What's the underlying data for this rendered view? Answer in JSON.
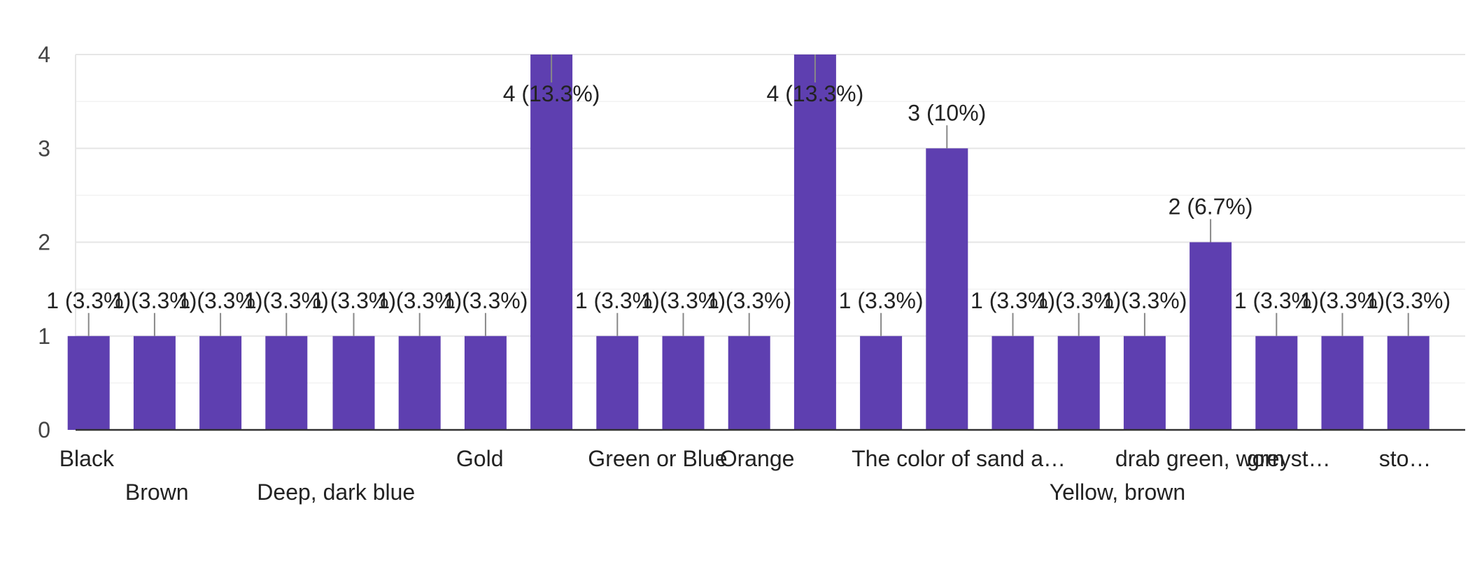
{
  "chart_data": {
    "type": "bar",
    "title": "",
    "xlabel": "",
    "ylabel": "",
    "ylim": [
      0,
      4
    ],
    "yticks": [
      0,
      1,
      2,
      3,
      4
    ],
    "grid": true,
    "bar_color": "#5e3fb0",
    "categories": [
      "Black",
      "Brown",
      "",
      "Deep, dark blue",
      "",
      "",
      "Gold",
      "",
      "Green or Blue",
      "",
      "Orange",
      "",
      "The color of sand a…",
      "",
      "",
      "Yellow, brown",
      "drab green, worn st…",
      "",
      "grey",
      "",
      "sto…"
    ],
    "values": [
      1,
      1,
      1,
      1,
      1,
      1,
      1,
      4,
      1,
      1,
      1,
      4,
      1,
      3,
      1,
      1,
      1,
      2,
      1,
      1,
      1
    ],
    "data_labels": [
      "1 (3.3%)",
      "1 (3.3%)",
      "1 (3.3%)",
      "1 (3.3%)",
      "1 (3.3%)",
      "1 (3.3%)",
      "1 (3.3%)",
      "4 (13.3%)",
      "1 (3.3%)",
      "1 (3.3%)",
      "1 (3.3%)",
      "4 (13.3%)",
      "1 (3.3%)",
      "3 (10%)",
      "1 (3.3%)",
      "1 (3.3%)",
      "1 (3.3%)",
      "2 (6.7%)",
      "1 (3.3%)",
      "1 (3.3%)",
      "1 (3.3%)"
    ]
  }
}
